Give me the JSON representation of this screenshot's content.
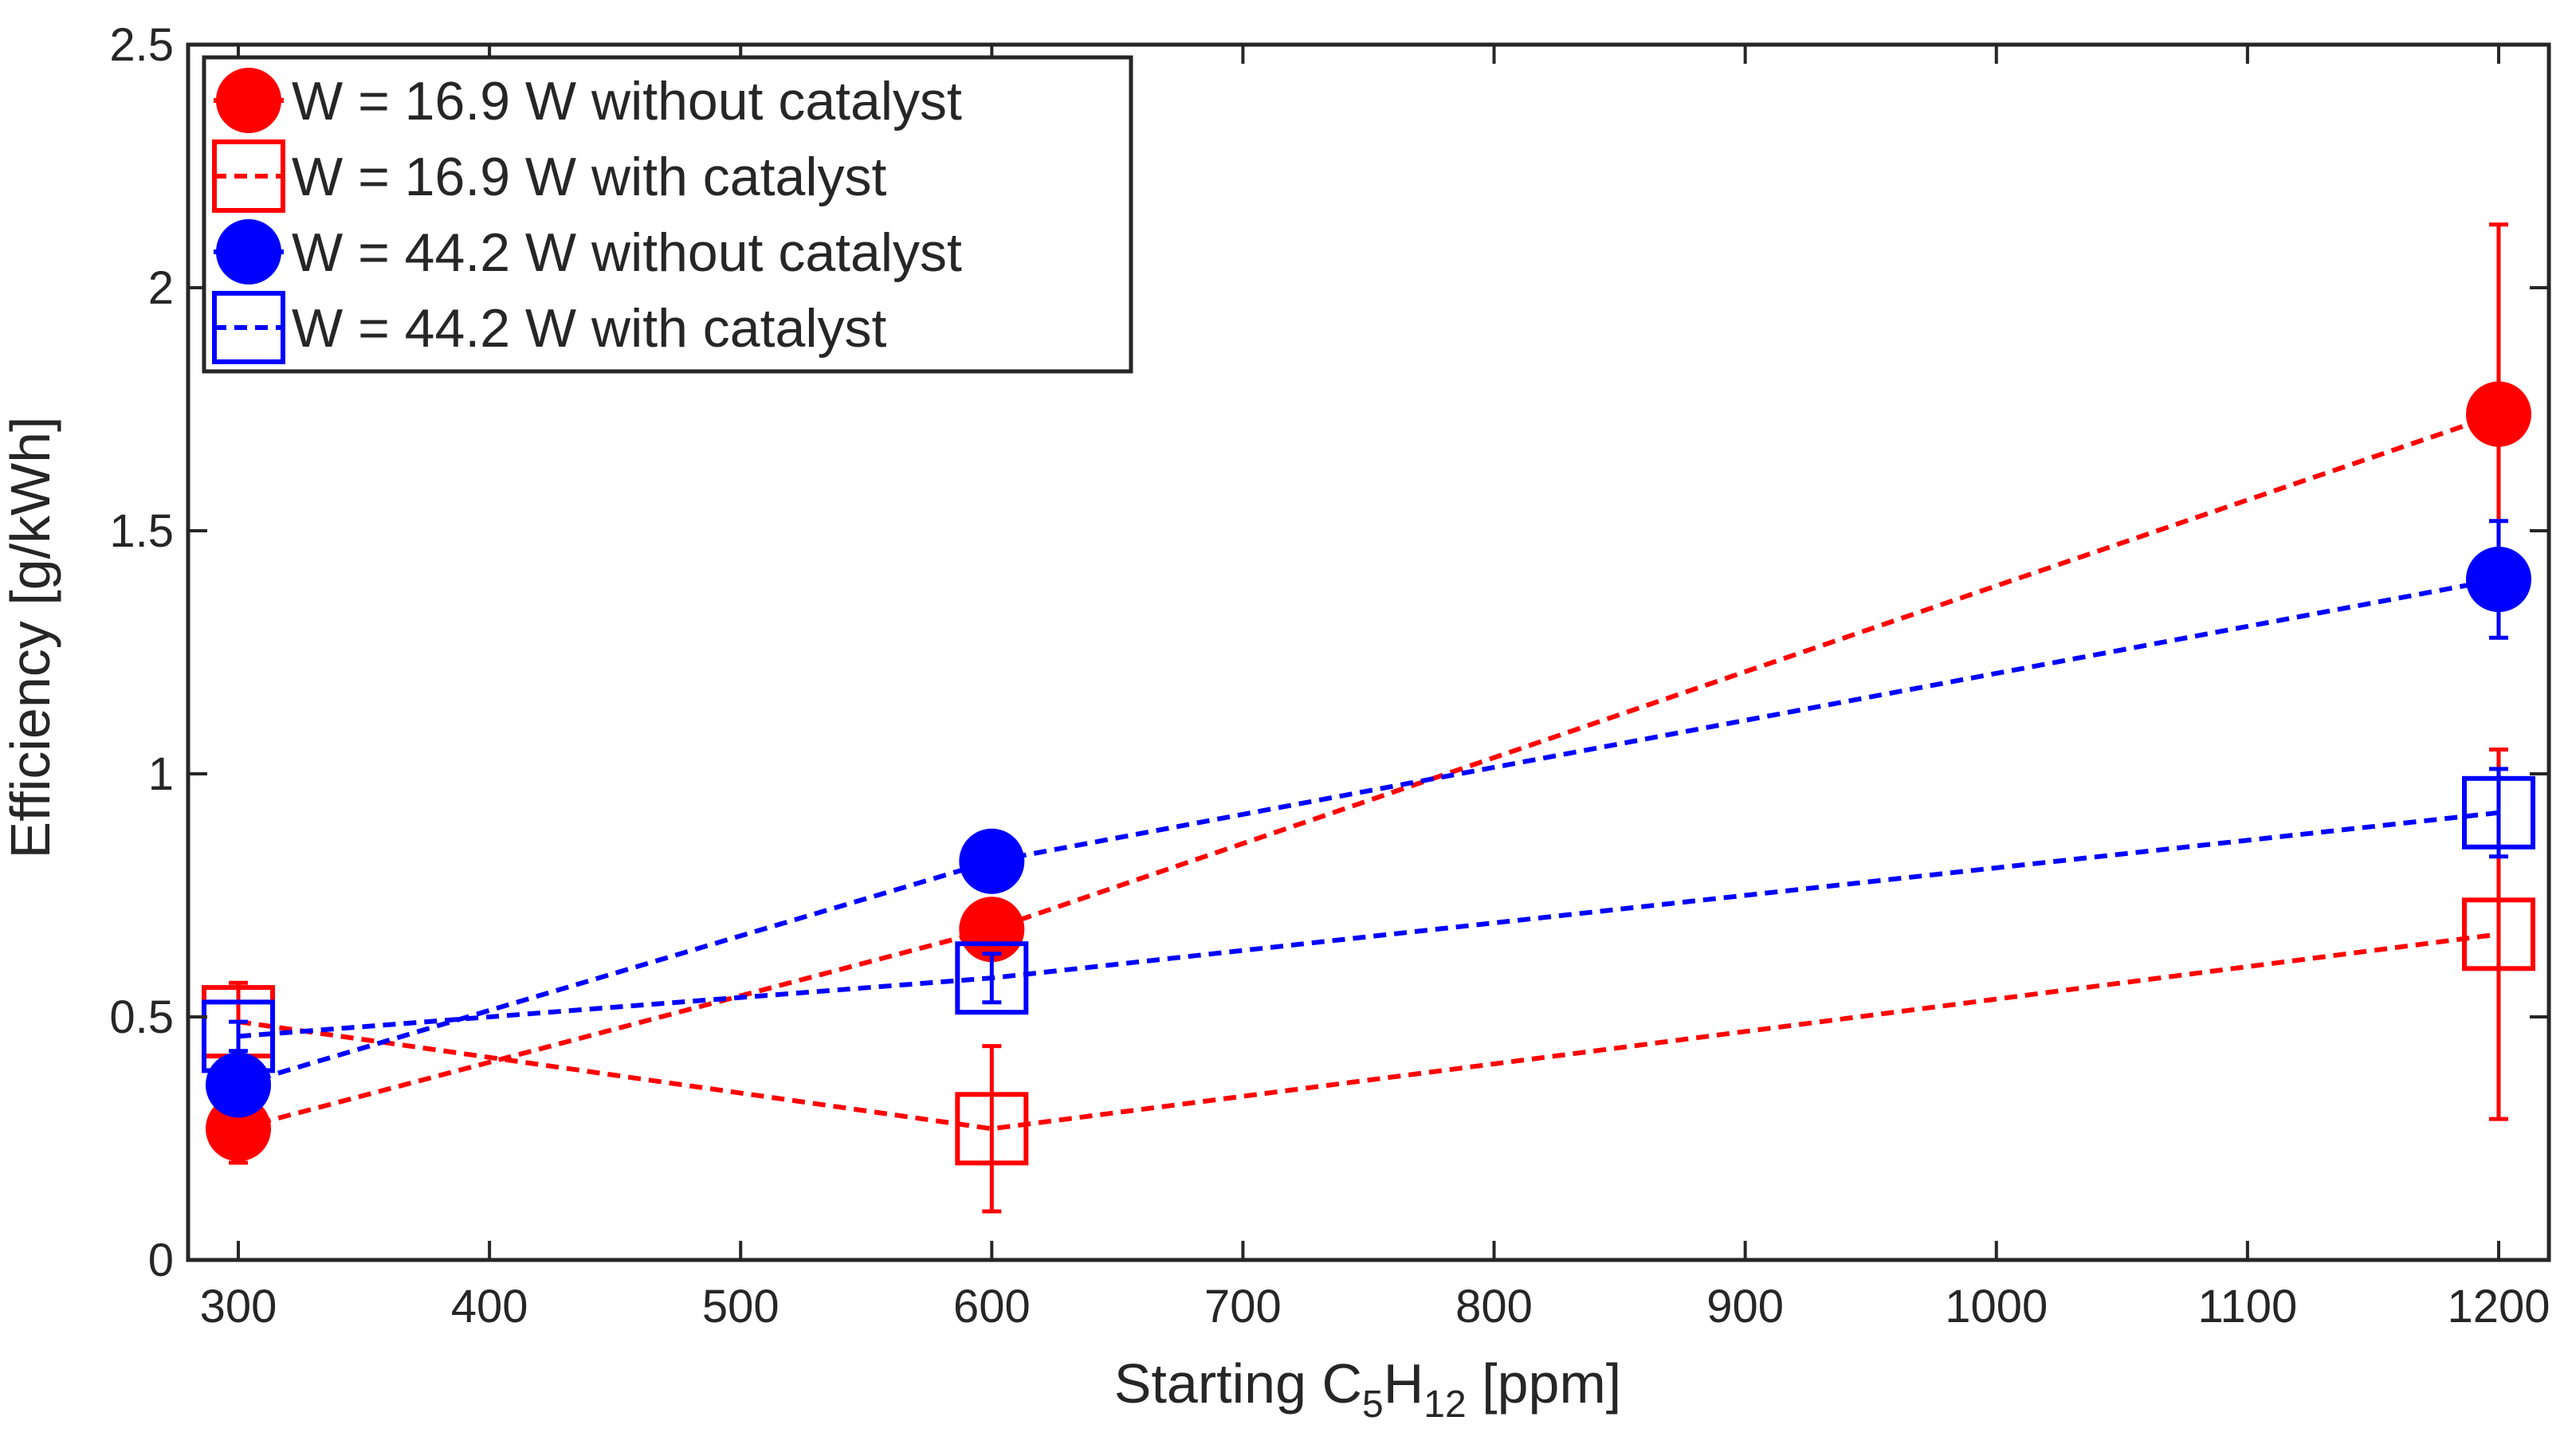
{
  "chart_data": {
    "type": "line",
    "xlabel": {
      "prefix": "Starting C",
      "sub1": "5",
      "mid": "H",
      "sub2": "12",
      "suffix": " [ppm]"
    },
    "ylabel": "Efficiency [g/kWh]",
    "xlim": [
      280,
      1220
    ],
    "ylim": [
      0,
      2.5
    ],
    "xticks": [
      300,
      400,
      500,
      600,
      700,
      800,
      900,
      1000,
      1100,
      1200
    ],
    "xtick_labels": [
      "300",
      "400",
      "500",
      "600",
      "700",
      "800",
      "900",
      "1000",
      "1100",
      "1200"
    ],
    "yticks": [
      0,
      0.5,
      1,
      1.5,
      2,
      2.5
    ],
    "ytick_labels": [
      "0",
      "0.5",
      "1",
      "1.5",
      "2",
      "2.5"
    ],
    "grid": false,
    "legend_position": "top-left",
    "series": [
      {
        "name": "W = 16.9 W without catalyst",
        "color": "#ff0000",
        "marker": "filled-circle",
        "line_style": "dashed",
        "x": [
          300,
          600,
          1200
        ],
        "y": [
          0.27,
          0.68,
          1.74
        ],
        "err": [
          0.07,
          0.05,
          0.39
        ]
      },
      {
        "name": "W = 16.9 W with catalyst",
        "color": "#ff0000",
        "marker": "open-square",
        "line_style": "dashed",
        "x": [
          300,
          600,
          1200
        ],
        "y": [
          0.49,
          0.27,
          0.67
        ],
        "err": [
          0.08,
          0.17,
          0.38
        ]
      },
      {
        "name": "W = 44.2 W without catalyst",
        "color": "#0000ff",
        "marker": "filled-circle",
        "line_style": "dashed",
        "x": [
          300,
          600,
          1200
        ],
        "y": [
          0.36,
          0.82,
          1.4
        ],
        "err": [
          0.05,
          0.04,
          0.12
        ]
      },
      {
        "name": "W = 44.2 W with catalyst",
        "color": "#0000ff",
        "marker": "open-square",
        "line_style": "dashed",
        "x": [
          300,
          600,
          1200
        ],
        "y": [
          0.46,
          0.58,
          0.92
        ],
        "err": [
          0.03,
          0.05,
          0.09
        ]
      }
    ]
  }
}
